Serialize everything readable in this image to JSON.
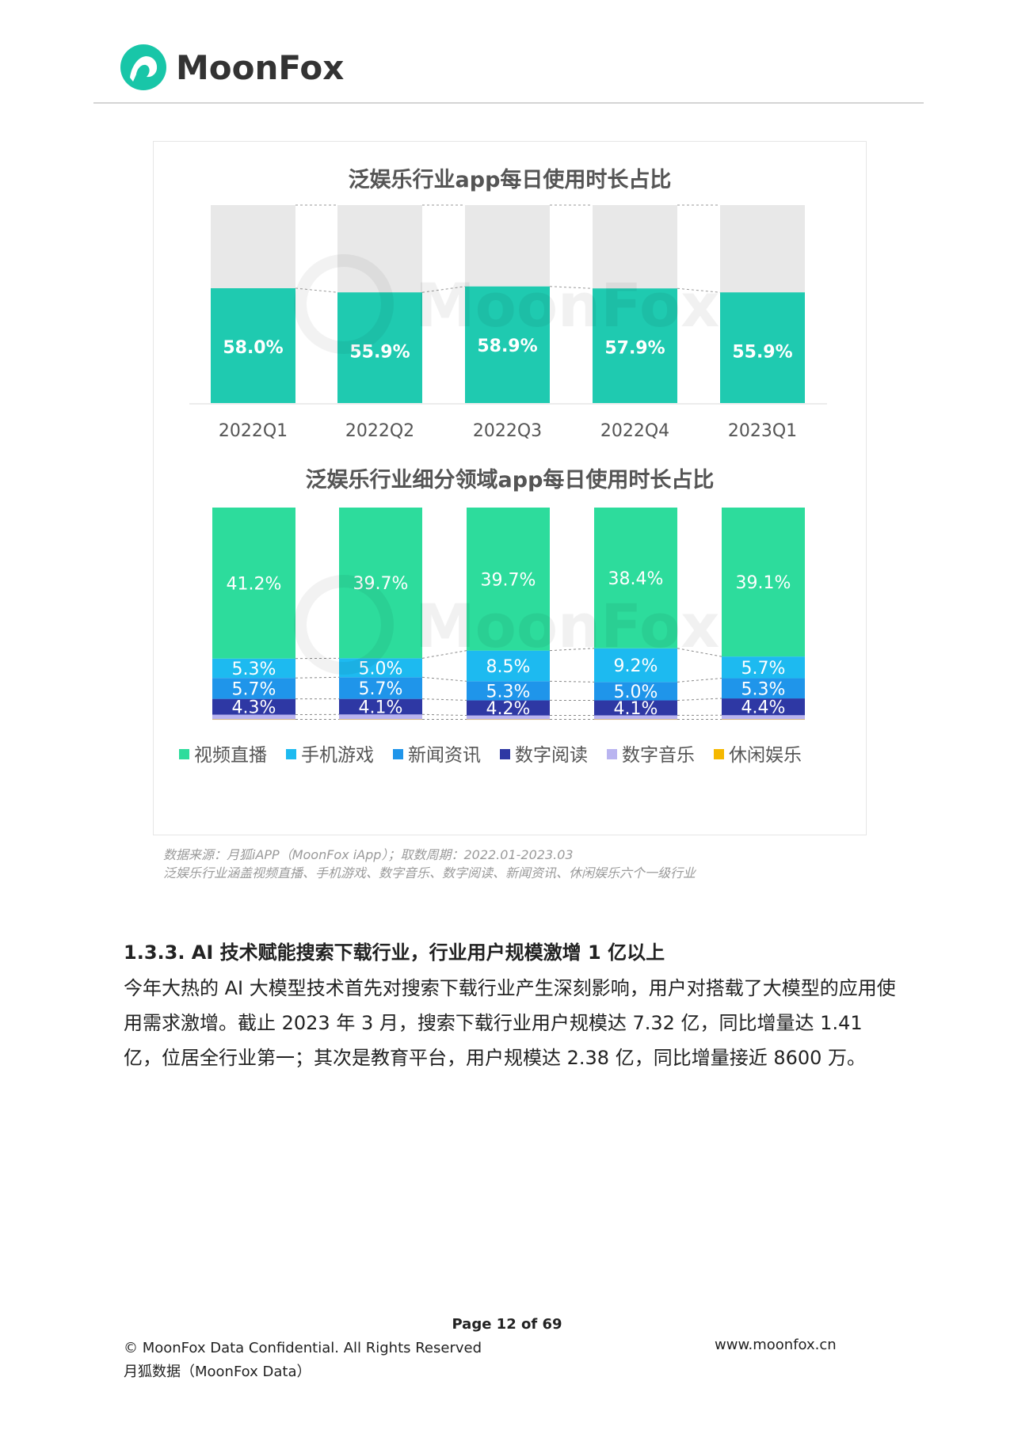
{
  "header": {
    "brand": "MoonFox",
    "logo_icon": "moonfox-logo-icon",
    "brand_color": "#18c6a8"
  },
  "chart_data": [
    {
      "type": "bar",
      "title": "泛娱乐行业app每日使用时长占比",
      "categories": [
        "2022Q1",
        "2022Q2",
        "2022Q3",
        "2022Q4",
        "2023Q1"
      ],
      "values": [
        58.0,
        55.9,
        58.9,
        57.9,
        55.9
      ],
      "value_labels": [
        "58.0%",
        "55.9%",
        "58.9%",
        "57.9%",
        "55.9%"
      ],
      "ylim": [
        0,
        100
      ],
      "stacked_remainder": true,
      "colors": {
        "bar": "#1fcab0",
        "background": "#e8e8e8"
      },
      "watermark": "MoonFox"
    },
    {
      "type": "bar",
      "stacked": true,
      "title": "泛娱乐行业细分领域app每日使用时长占比",
      "categories": [
        "2022Q1",
        "2022Q2",
        "2022Q3",
        "2022Q4",
        "2023Q1"
      ],
      "series": [
        {
          "name": "休闲娱乐",
          "color": "#f5b800",
          "values": [
            0.1,
            0.1,
            0.1,
            0.1,
            0.1
          ]
        },
        {
          "name": "数字音乐",
          "color": "#b9b4f0",
          "values": [
            1.3,
            1.3,
            1.1,
            1.1,
            1.1
          ],
          "labels": [
            "",
            "",
            "",
            "",
            ""
          ]
        },
        {
          "name": "数字阅读",
          "color": "#2e38a4",
          "values": [
            4.3,
            4.1,
            4.2,
            4.1,
            4.4
          ],
          "labels": [
            "4.3%",
            "4.1%",
            "4.2%",
            "4.1%",
            "4.4%"
          ]
        },
        {
          "name": "新闻资讯",
          "color": "#1f95ea",
          "values": [
            5.7,
            5.7,
            5.3,
            5.0,
            5.3
          ],
          "labels": [
            "5.7%",
            "5.7%",
            "5.3%",
            "5.0%",
            "5.3%"
          ]
        },
        {
          "name": "手机游戏",
          "color": "#1dbaf0",
          "values": [
            5.3,
            5.0,
            8.5,
            9.2,
            5.7
          ],
          "labels": [
            "5.3%",
            "5.0%",
            "8.5%",
            "9.2%",
            "5.7%"
          ]
        },
        {
          "name": "视频直播",
          "color": "#2ddc9c",
          "values": [
            41.2,
            39.7,
            39.7,
            38.4,
            39.1
          ],
          "labels": [
            "41.2%",
            "39.7%",
            "39.7%",
            "38.4%",
            "39.1%"
          ]
        }
      ],
      "legend": {
        "placement": "bottom",
        "items": [
          {
            "name": "视频直播",
            "color": "#2ddc9c"
          },
          {
            "name": "手机游戏",
            "color": "#1dbaf0"
          },
          {
            "name": "新闻资讯",
            "color": "#1f95ea"
          },
          {
            "name": "数字阅读",
            "color": "#2e38a4"
          },
          {
            "name": "数字音乐",
            "color": "#b9b4f0"
          },
          {
            "name": "休闲娱乐",
            "color": "#f5b800"
          }
        ]
      },
      "watermark": "MoonFox"
    }
  ],
  "source": {
    "line1": "数据来源：月狐iAPP（MoonFox iApp）；取数周期：2022.01-2023.03",
    "line2": "泛娱乐行业涵盖视频直播、手机游戏、数字音乐、数字阅读、新闻资讯、休闲娱乐六个一级行业"
  },
  "section": {
    "heading": "1.3.3. AI 技术赋能搜索下载行业，行业用户规模激增 1 亿以上",
    "body": "今年大热的 AI 大模型技术首先对搜索下载行业产生深刻影响，用户对搭载了大模型的应用使用需求激增。截止 2023 年 3 月，搜索下载行业用户规模达 7.32 亿，同比增量达 1.41 亿，位居全行业第一；其次是教育平台，用户规模达 2.38 亿，同比增量接近 8600 万。"
  },
  "footer": {
    "page": "Page  12 of 69",
    "copyright": "© MoonFox Data Confidential. All Rights Reserved",
    "company": "月狐数据（MoonFox Data）",
    "website": "www.moonfox.cn"
  }
}
